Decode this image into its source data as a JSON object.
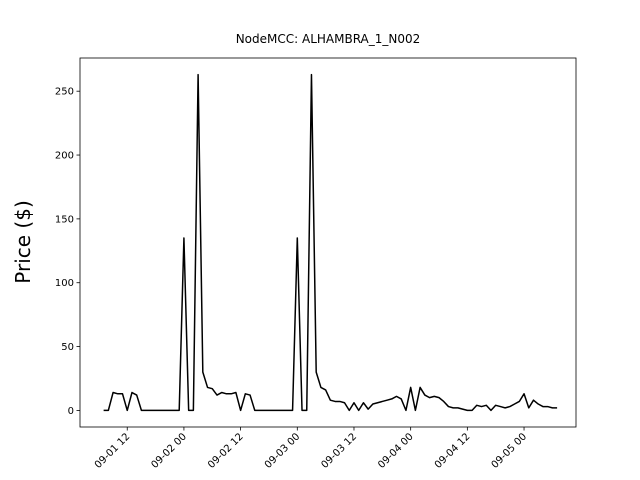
{
  "chart_data": {
    "type": "line",
    "title": "NodeMCC: ALHAMBRA_1_N002",
    "y_label": "Price ($)",
    "x": [
      "09-01 07",
      "09-01 08",
      "09-01 09",
      "09-01 10",
      "09-01 11",
      "09-01 12",
      "09-01 13",
      "09-01 14",
      "09-01 15",
      "09-01 16",
      "09-01 17",
      "09-01 18",
      "09-01 19",
      "09-01 20",
      "09-01 21",
      "09-01 22",
      "09-01 23",
      "09-02 00",
      "09-02 01",
      "09-02 02",
      "09-02 03",
      "09-02 04",
      "09-02 05",
      "09-02 06",
      "09-02 07",
      "09-02 08",
      "09-02 09",
      "09-02 10",
      "09-02 11",
      "09-02 12",
      "09-02 13",
      "09-02 14",
      "09-02 15",
      "09-02 16",
      "09-02 17",
      "09-02 18",
      "09-02 19",
      "09-02 20",
      "09-02 21",
      "09-02 22",
      "09-02 23",
      "09-03 00",
      "09-03 01",
      "09-03 02",
      "09-03 03",
      "09-03 04",
      "09-03 05",
      "09-03 06",
      "09-03 07",
      "09-03 08",
      "09-03 09",
      "09-03 10",
      "09-03 11",
      "09-03 12",
      "09-03 13",
      "09-03 14",
      "09-03 15",
      "09-03 16",
      "09-03 17",
      "09-03 18",
      "09-03 19",
      "09-03 20",
      "09-03 21",
      "09-03 22",
      "09-03 23",
      "09-04 00",
      "09-04 01",
      "09-04 02",
      "09-04 03",
      "09-04 04",
      "09-04 05",
      "09-04 06",
      "09-04 07",
      "09-04 08",
      "09-04 09",
      "09-04 10",
      "09-04 11",
      "09-04 12",
      "09-04 13",
      "09-04 14",
      "09-04 15",
      "09-04 16",
      "09-04 17",
      "09-04 18",
      "09-04 19",
      "09-04 20",
      "09-04 21",
      "09-04 22",
      "09-04 23",
      "09-05 00",
      "09-05 01",
      "09-05 02",
      "09-05 03",
      "09-05 04",
      "09-05 05",
      "09-05 06",
      "09-05 07"
    ],
    "series": [
      {
        "name": "ALHAMBRA_1_N002",
        "color": "#000000",
        "values": [
          0,
          0,
          14,
          13,
          13,
          0,
          14,
          12,
          0,
          0,
          0,
          0,
          0,
          0,
          0,
          0,
          0,
          135,
          0,
          0,
          263,
          30,
          18,
          17,
          12,
          14,
          13,
          13,
          14,
          0,
          13,
          12,
          0,
          0,
          0,
          0,
          0,
          0,
          0,
          0,
          0,
          135,
          0,
          0,
          263,
          30,
          18,
          16,
          8,
          7,
          7,
          6,
          0,
          6,
          0,
          6,
          1,
          5,
          6,
          7,
          8,
          9,
          11,
          9,
          0,
          18,
          0,
          18,
          12,
          10,
          11,
          10,
          7,
          3,
          2,
          2,
          1,
          0,
          0,
          4,
          3,
          4,
          0,
          4,
          3,
          2,
          3,
          5,
          7,
          13,
          2,
          8,
          5,
          3,
          3,
          2,
          2
        ]
      }
    ],
    "xlim": [
      "09-01 02",
      "09-05 11"
    ],
    "xticks": [
      "09-01 12",
      "09-02 00",
      "09-02 12",
      "09-03 00",
      "09-03 12",
      "09-04 00",
      "09-04 12",
      "09-05 00"
    ],
    "ylim": [
      -13,
      276
    ],
    "yticks": [
      0,
      50,
      100,
      150,
      200,
      250
    ],
    "grid": false
  }
}
